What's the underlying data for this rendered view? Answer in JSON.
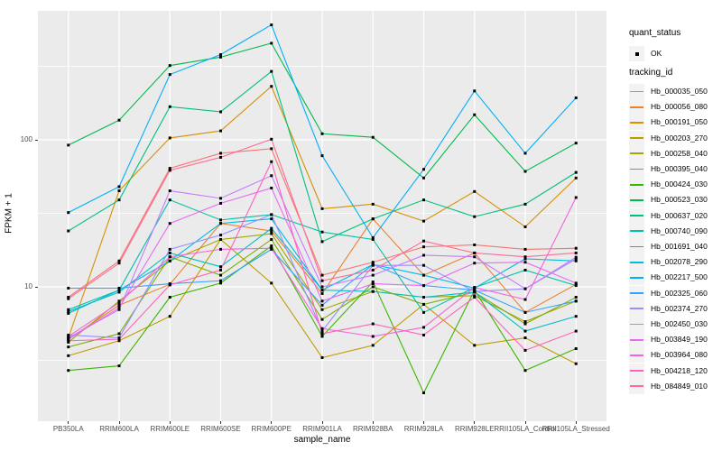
{
  "figure": {
    "x_axis_title": "sample_name",
    "y_axis_title": "FPKM + 1",
    "y_tick_labels": [
      "100",
      "10"
    ],
    "colors": {
      "panel_bg": "#EBEBEB",
      "grid_major": "#FFFFFF",
      "grid_minor": "#FFFFFF",
      "tick_text": "#4D4D4D",
      "point_marker": "#000000",
      "legend_key_bg": "#F2F2F2"
    }
  },
  "legend": {
    "quant_title": "quant_status",
    "quant_items": [
      {
        "label": "OK",
        "marker": "black-point"
      }
    ],
    "tracking_title": "tracking_id"
  },
  "chart_data": {
    "type": "line",
    "title": "",
    "xlabel": "sample_name",
    "ylabel": "FPKM + 1",
    "y_scale": "log10",
    "ylim": [
      1.2,
      750
    ],
    "y_major_ticks": [
      10,
      100
    ],
    "y_minor_ticks": [
      3.162,
      31.62,
      316.2
    ],
    "grid": true,
    "legend_position": "right",
    "point_marker": "black-square",
    "x": [
      "PB350LA",
      "RRIM600LA",
      "RRIM600LE",
      "RRIM600SE",
      "RRIM600PE",
      "RRIM901LA",
      "RRIM928BA",
      "RRIM928LA",
      "RRIM928LE",
      "RRII105LA_Control",
      "RRII105LA_Stressed"
    ],
    "series": [
      {
        "name": "Hb_000035_050",
        "color": "#F8766D",
        "values": [
          8.5,
          15,
          64,
          81,
          87,
          12,
          14.7,
          18.7,
          19.3,
          18,
          18.3
        ]
      },
      {
        "name": "Hb_000056_080",
        "color": "#EA8331",
        "values": [
          4.4,
          7.5,
          10.4,
          27,
          24,
          9,
          29,
          12,
          17,
          6.7,
          10.4
        ]
      },
      {
        "name": "Hb_000191_050",
        "color": "#D89000",
        "values": [
          4.5,
          45,
          103,
          115,
          231,
          34,
          36.5,
          28,
          44.5,
          25.6,
          55
        ]
      },
      {
        "name": "Hb_000203_270",
        "color": "#C09B00",
        "values": [
          3.4,
          4.3,
          6.3,
          21,
          10.6,
          3.3,
          4.0,
          7.6,
          4.0,
          4.5,
          3.0
        ]
      },
      {
        "name": "Hb_000258_040",
        "color": "#A3A500",
        "values": [
          4.2,
          8.0,
          15,
          21,
          23,
          7.0,
          9.3,
          8.5,
          8.7,
          5.8,
          8.0
        ]
      },
      {
        "name": "Hb_000395_040",
        "color": "#7CAE00",
        "values": [
          3.9,
          4.8,
          16,
          12,
          21,
          6.0,
          10.0,
          7.6,
          9.2,
          5.6,
          8.5
        ]
      },
      {
        "name": "Hb_000424_030",
        "color": "#39B600",
        "values": [
          2.7,
          2.9,
          8.5,
          10.6,
          19,
          4.6,
          10.8,
          1.9,
          9.5,
          2.7,
          3.8
        ]
      },
      {
        "name": "Hb_000523_030",
        "color": "#00BB4E",
        "values": [
          92,
          136,
          320,
          365,
          454,
          110,
          104,
          55,
          148,
          61,
          95
        ]
      },
      {
        "name": "Hb_000637_020",
        "color": "#00BF7D",
        "values": [
          24,
          39,
          168,
          155,
          292,
          20.3,
          29,
          39,
          30,
          36.5,
          60
        ]
      },
      {
        "name": "Hb_000740_090",
        "color": "#00C1A3",
        "values": [
          7.0,
          9.5,
          39,
          28.5,
          31,
          23.6,
          21,
          6.7,
          9.9,
          13,
          10.2
        ]
      },
      {
        "name": "Hb_001691_040",
        "color": "#00BFC4",
        "values": [
          6.8,
          9.2,
          17,
          13.7,
          25,
          9.5,
          9.3,
          8.5,
          9.2,
          5.0,
          6.3
        ]
      },
      {
        "name": "Hb_002078_290",
        "color": "#00BAE0",
        "values": [
          6.6,
          9.5,
          15,
          27,
          29,
          9.5,
          14.2,
          12,
          9.8,
          15.5,
          15
        ]
      },
      {
        "name": "Hb_002217_500",
        "color": "#00B0F6",
        "values": [
          32,
          48,
          278,
          380,
          605,
          78,
          21.6,
          63,
          215,
          81,
          193
        ]
      },
      {
        "name": "Hb_002325_060",
        "color": "#35A2FF",
        "values": [
          9.8,
          9.8,
          10.5,
          11,
          18,
          7.5,
          14.2,
          10.2,
          9.5,
          6.7,
          8.0
        ]
      },
      {
        "name": "Hb_002374_270",
        "color": "#9590FF",
        "values": [
          4.7,
          4.5,
          18,
          22.5,
          31,
          5.0,
          14.0,
          14,
          9.3,
          9.7,
          15.5
        ]
      },
      {
        "name": "Hb_002450_030",
        "color": "#C77CFF",
        "values": [
          4.5,
          7.0,
          45,
          40,
          57,
          10,
          12,
          16.4,
          16,
          9.7,
          15.9
        ]
      },
      {
        "name": "Hb_003849_190",
        "color": "#E76BF3",
        "values": [
          4.4,
          7.2,
          27,
          37,
          47,
          8.0,
          10.5,
          10.2,
          14.5,
          14.7,
          10.6
        ]
      },
      {
        "name": "Hb_003964_080",
        "color": "#FA62DB",
        "values": [
          4.6,
          7.8,
          16,
          18,
          18.3,
          5.2,
          4.6,
          5.3,
          9.9,
          8.2,
          40.5
        ]
      },
      {
        "name": "Hb_004218_120",
        "color": "#FF62BC",
        "values": [
          4.3,
          4.4,
          10.3,
          13,
          71,
          4.8,
          5.6,
          4.7,
          8.5,
          3.7,
          5.0
        ]
      },
      {
        "name": "Hb_084849_010",
        "color": "#FF6A98",
        "values": [
          8.3,
          14.5,
          62,
          76,
          101,
          11,
          13,
          20.5,
          17,
          16,
          17
        ]
      }
    ]
  }
}
